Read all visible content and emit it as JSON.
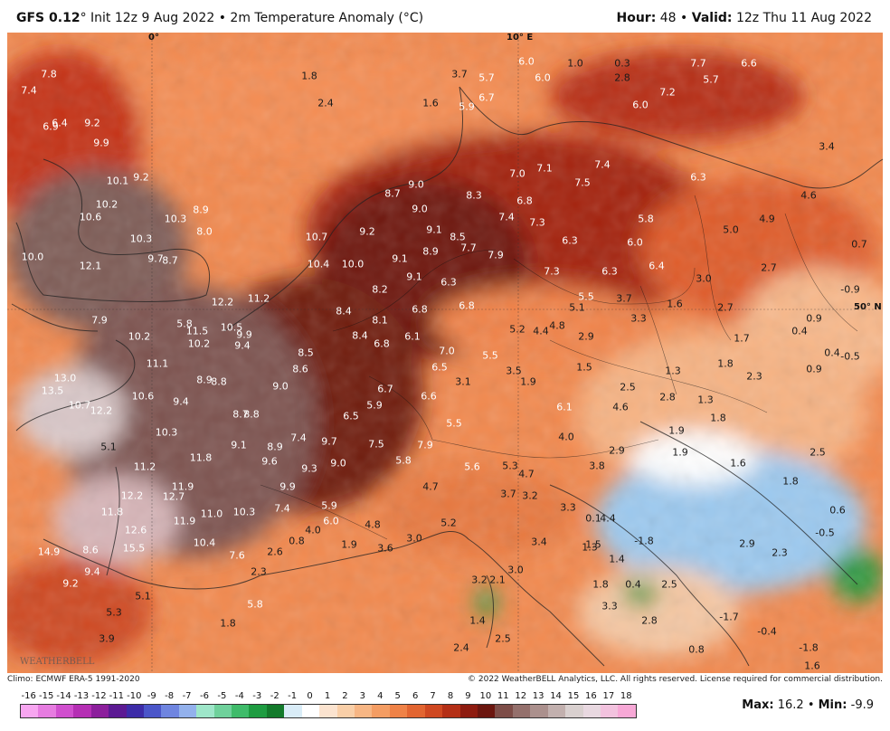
{
  "header": {
    "model": "GFS 0.12",
    "deg": "°",
    "init": "Init 12z 9 Aug 2022",
    "bullet": "•",
    "field": "2m Temperature Anomaly (°C)",
    "hour_label": "Hour:",
    "hour_value": "48",
    "valid_label": "Valid:",
    "valid_value": "12z Thu 11 Aug 2022"
  },
  "map_labels": {
    "lon_0": "0°",
    "lon_10e": "10° E",
    "lat_50n": "50° N"
  },
  "values": [
    {
      "t": "7.8"
    },
    {
      "t": "7.4"
    },
    {
      "t": "1.8"
    },
    {
      "t": "2.4"
    },
    {
      "t": "1.6"
    },
    {
      "t": "3.7"
    },
    {
      "t": "5.7"
    },
    {
      "t": "6.0"
    },
    {
      "t": "1.0"
    },
    {
      "t": "0.3"
    },
    {
      "t": "7.7"
    },
    {
      "t": "6.6"
    },
    {
      "t": "6.0"
    },
    {
      "t": "2.8"
    },
    {
      "t": "5.7"
    },
    {
      "t": "7.2"
    },
    {
      "t": "6.4"
    },
    {
      "t": "9.2"
    },
    {
      "t": "6.9"
    },
    {
      "t": "9.9"
    },
    {
      "t": "5.9"
    },
    {
      "t": "6.7"
    },
    {
      "t": "6.0"
    },
    {
      "t": "7.0"
    },
    {
      "t": "7.1"
    },
    {
      "t": "7.4"
    },
    {
      "t": "6.3"
    },
    {
      "t": "3.4"
    },
    {
      "t": "10.1"
    },
    {
      "t": "9.2"
    },
    {
      "t": "8.7"
    },
    {
      "t": "9.0"
    },
    {
      "t": "8.3"
    },
    {
      "t": "7.5"
    },
    {
      "t": "4.6"
    },
    {
      "t": "10.2"
    },
    {
      "t": "10.6"
    },
    {
      "t": "10.3"
    },
    {
      "t": "8.9"
    },
    {
      "t": "9.0"
    },
    {
      "t": "6.8"
    },
    {
      "t": "7.4"
    },
    {
      "t": "7.3"
    },
    {
      "t": "5.8"
    },
    {
      "t": "4.9"
    },
    {
      "t": "10.3"
    },
    {
      "t": "8.0"
    },
    {
      "t": "9.2"
    },
    {
      "t": "9.1"
    },
    {
      "t": "8.5"
    },
    {
      "t": "6.3"
    },
    {
      "t": "6.0"
    },
    {
      "t": "5.0"
    },
    {
      "t": "0.7"
    },
    {
      "t": "10.0"
    },
    {
      "t": "9.7"
    },
    {
      "t": "8.7"
    },
    {
      "t": "10.7"
    },
    {
      "t": "7.7"
    },
    {
      "t": "7.9"
    },
    {
      "t": "8.9"
    },
    {
      "t": "6.4"
    },
    {
      "t": "12.1"
    },
    {
      "t": "10.4"
    },
    {
      "t": "10.0"
    },
    {
      "t": "9.1"
    },
    {
      "t": "7.3"
    },
    {
      "t": "6.3"
    },
    {
      "t": "2.7"
    },
    {
      "t": "9.1"
    },
    {
      "t": "6.3"
    },
    {
      "t": "3.0"
    },
    {
      "t": "8.2"
    },
    {
      "t": "5.5"
    },
    {
      "t": "3.7"
    },
    {
      "t": "-0.9"
    },
    {
      "t": "12.2"
    },
    {
      "t": "11.2"
    },
    {
      "t": "6.8"
    },
    {
      "t": "6.8"
    },
    {
      "t": "5.1"
    },
    {
      "t": "1.6"
    },
    {
      "t": "2.7"
    },
    {
      "t": "8.4"
    },
    {
      "t": "8.1"
    },
    {
      "t": "3.3"
    },
    {
      "t": "0.9"
    },
    {
      "t": "7.9"
    },
    {
      "t": "5.8"
    },
    {
      "t": "5.2"
    },
    {
      "t": "4.4"
    },
    {
      "t": "4.8"
    },
    {
      "t": "2.9"
    },
    {
      "t": "1.7"
    },
    {
      "t": "0.4"
    },
    {
      "t": "10.2"
    },
    {
      "t": "11.5"
    },
    {
      "t": "10.5"
    },
    {
      "t": "9.9"
    },
    {
      "t": "8.4"
    },
    {
      "t": "6.1"
    },
    {
      "t": "6.8"
    },
    {
      "t": "10.2"
    },
    {
      "t": "9.4"
    },
    {
      "t": "8.5"
    },
    {
      "t": "7.0"
    },
    {
      "t": "5.5"
    },
    {
      "t": "0.4"
    },
    {
      "t": "-0.5"
    },
    {
      "t": "11.1"
    },
    {
      "t": "8.6"
    },
    {
      "t": "6.5"
    },
    {
      "t": "1.5"
    },
    {
      "t": "1.3"
    },
    {
      "t": "1.8"
    },
    {
      "t": "0.9"
    },
    {
      "t": "13.0"
    },
    {
      "t": "8.9"
    },
    {
      "t": "8.8"
    },
    {
      "t": "3.1"
    },
    {
      "t": "3.5"
    },
    {
      "t": "1.9"
    },
    {
      "t": "2.3"
    },
    {
      "t": "13.5"
    },
    {
      "t": "10.6"
    },
    {
      "t": "9.4"
    },
    {
      "t": "9.0"
    },
    {
      "t": "6.7"
    },
    {
      "t": "6.6"
    },
    {
      "t": "2.5"
    },
    {
      "t": "2.8"
    },
    {
      "t": "1.3"
    },
    {
      "t": "10.7"
    },
    {
      "t": "12.2"
    },
    {
      "t": "8.7"
    },
    {
      "t": "8.8"
    },
    {
      "t": "5.9"
    },
    {
      "t": "6.5"
    },
    {
      "t": "6.1"
    },
    {
      "t": "4.6"
    },
    {
      "t": "1.9"
    },
    {
      "t": "1.8"
    },
    {
      "t": "10.3"
    },
    {
      "t": "7.4"
    },
    {
      "t": "9.7"
    },
    {
      "t": "7.9"
    },
    {
      "t": "5.5"
    },
    {
      "t": "4.0"
    },
    {
      "t": "1.9"
    },
    {
      "t": "5.1"
    },
    {
      "t": "9.1"
    },
    {
      "t": "8.9"
    },
    {
      "t": "7.5"
    },
    {
      "t": "2.9"
    },
    {
      "t": "2.5"
    },
    {
      "t": "11.8"
    },
    {
      "t": "9.6"
    },
    {
      "t": "9.3"
    },
    {
      "t": "9.0"
    },
    {
      "t": "5.8"
    },
    {
      "t": "5.6"
    },
    {
      "t": "5.3"
    },
    {
      "t": "4.7"
    },
    {
      "t": "3.8"
    },
    {
      "t": "1.6"
    },
    {
      "t": "11.2"
    },
    {
      "t": "11.9"
    },
    {
      "t": "9.9"
    },
    {
      "t": "4.7"
    },
    {
      "t": "3.7"
    },
    {
      "t": "3.2"
    },
    {
      "t": "1.8"
    },
    {
      "t": "12.2"
    },
    {
      "t": "12.7"
    },
    {
      "t": "5.9"
    },
    {
      "t": "3.3"
    },
    {
      "t": "0.6"
    },
    {
      "t": "11.8"
    },
    {
      "t": "11.0"
    },
    {
      "t": "10.3"
    },
    {
      "t": "7.4"
    },
    {
      "t": "6.0"
    },
    {
      "t": "4.8"
    },
    {
      "t": "5.2"
    },
    {
      "t": "0.1"
    },
    {
      "t": "4.4"
    },
    {
      "t": "12.6"
    },
    {
      "t": "11.9"
    },
    {
      "t": "4.0"
    },
    {
      "t": "3.0"
    },
    {
      "t": "1.5"
    },
    {
      "t": "-1.8"
    },
    {
      "t": "-0.5"
    },
    {
      "t": "14.9"
    },
    {
      "t": "15.5"
    },
    {
      "t": "10.4"
    },
    {
      "t": "8.6"
    },
    {
      "t": "7.6"
    },
    {
      "t": "2.6"
    },
    {
      "t": "0.8"
    },
    {
      "t": "1.9"
    },
    {
      "t": "3.6"
    },
    {
      "t": "3.4"
    },
    {
      "t": "1.3"
    },
    {
      "t": "2.9"
    },
    {
      "t": "2.3"
    },
    {
      "t": "9.4"
    },
    {
      "t": "2.3"
    },
    {
      "t": "3.0"
    },
    {
      "t": "1.4"
    },
    {
      "t": "9.2"
    },
    {
      "t": "3.2"
    },
    {
      "t": "2.1"
    },
    {
      "t": "1.8"
    },
    {
      "t": "0.4"
    },
    {
      "t": "5.1"
    },
    {
      "t": "5.8"
    },
    {
      "t": "3.3"
    },
    {
      "t": "5.3"
    },
    {
      "t": "2.8"
    },
    {
      "t": "1.8"
    },
    {
      "t": "1.4"
    },
    {
      "t": "2.5"
    },
    {
      "t": "-1.7"
    },
    {
      "t": "-0.4"
    },
    {
      "t": "3.9"
    },
    {
      "t": "2.5"
    },
    {
      "t": "0.8"
    },
    {
      "t": "2.4"
    },
    {
      "t": "-1.8"
    },
    {
      "t": "1.6"
    }
  ],
  "footer": {
    "climo": "Climo: ECMWF ERA-5 1991-2020",
    "copyright": "© 2022 WeatherBELL Analytics, LLC. All rights reserved. License required for commercial distribution.",
    "logo": "WEATHERBELL",
    "max_label": "Max:",
    "max_value": "16.2",
    "min_label": "Min:",
    "min_value": "-9.9",
    "bullet": "•"
  },
  "colorbar": {
    "ticks": [
      "-16",
      "-15",
      "-14",
      "-13",
      "-12",
      "-11",
      "-10",
      "-9",
      "-8",
      "-7",
      "-6",
      "-5",
      "-4",
      "-3",
      "-2",
      "-1",
      "0",
      "1",
      "2",
      "3",
      "4",
      "5",
      "6",
      "7",
      "8",
      "9",
      "10",
      "11",
      "12",
      "13",
      "14",
      "15",
      "16",
      "17",
      "18"
    ],
    "colors": [
      "#f7a6f0",
      "#e67ce0",
      "#d04fce",
      "#b52fb4",
      "#8c1f9c",
      "#5c1a93",
      "#3d2ca8",
      "#4b56c9",
      "#6f85e0",
      "#93b1ec",
      "#9ee6c9",
      "#6fd19b",
      "#3fbb6a",
      "#1e9c41",
      "#137a2b",
      "#d9ecf7",
      "#ffffff",
      "#fbe3cf",
      "#f9cfa8",
      "#f7b684",
      "#f49d63",
      "#ef8247",
      "#e26531",
      "#cf4821",
      "#b42f16",
      "#8e1c10",
      "#6b160f",
      "#7d4d48",
      "#94706c",
      "#ab908d",
      "#c2b0ae",
      "#d9d0cf",
      "#e8d8e0",
      "#f2c2de",
      "#f7a8d6"
    ]
  }
}
